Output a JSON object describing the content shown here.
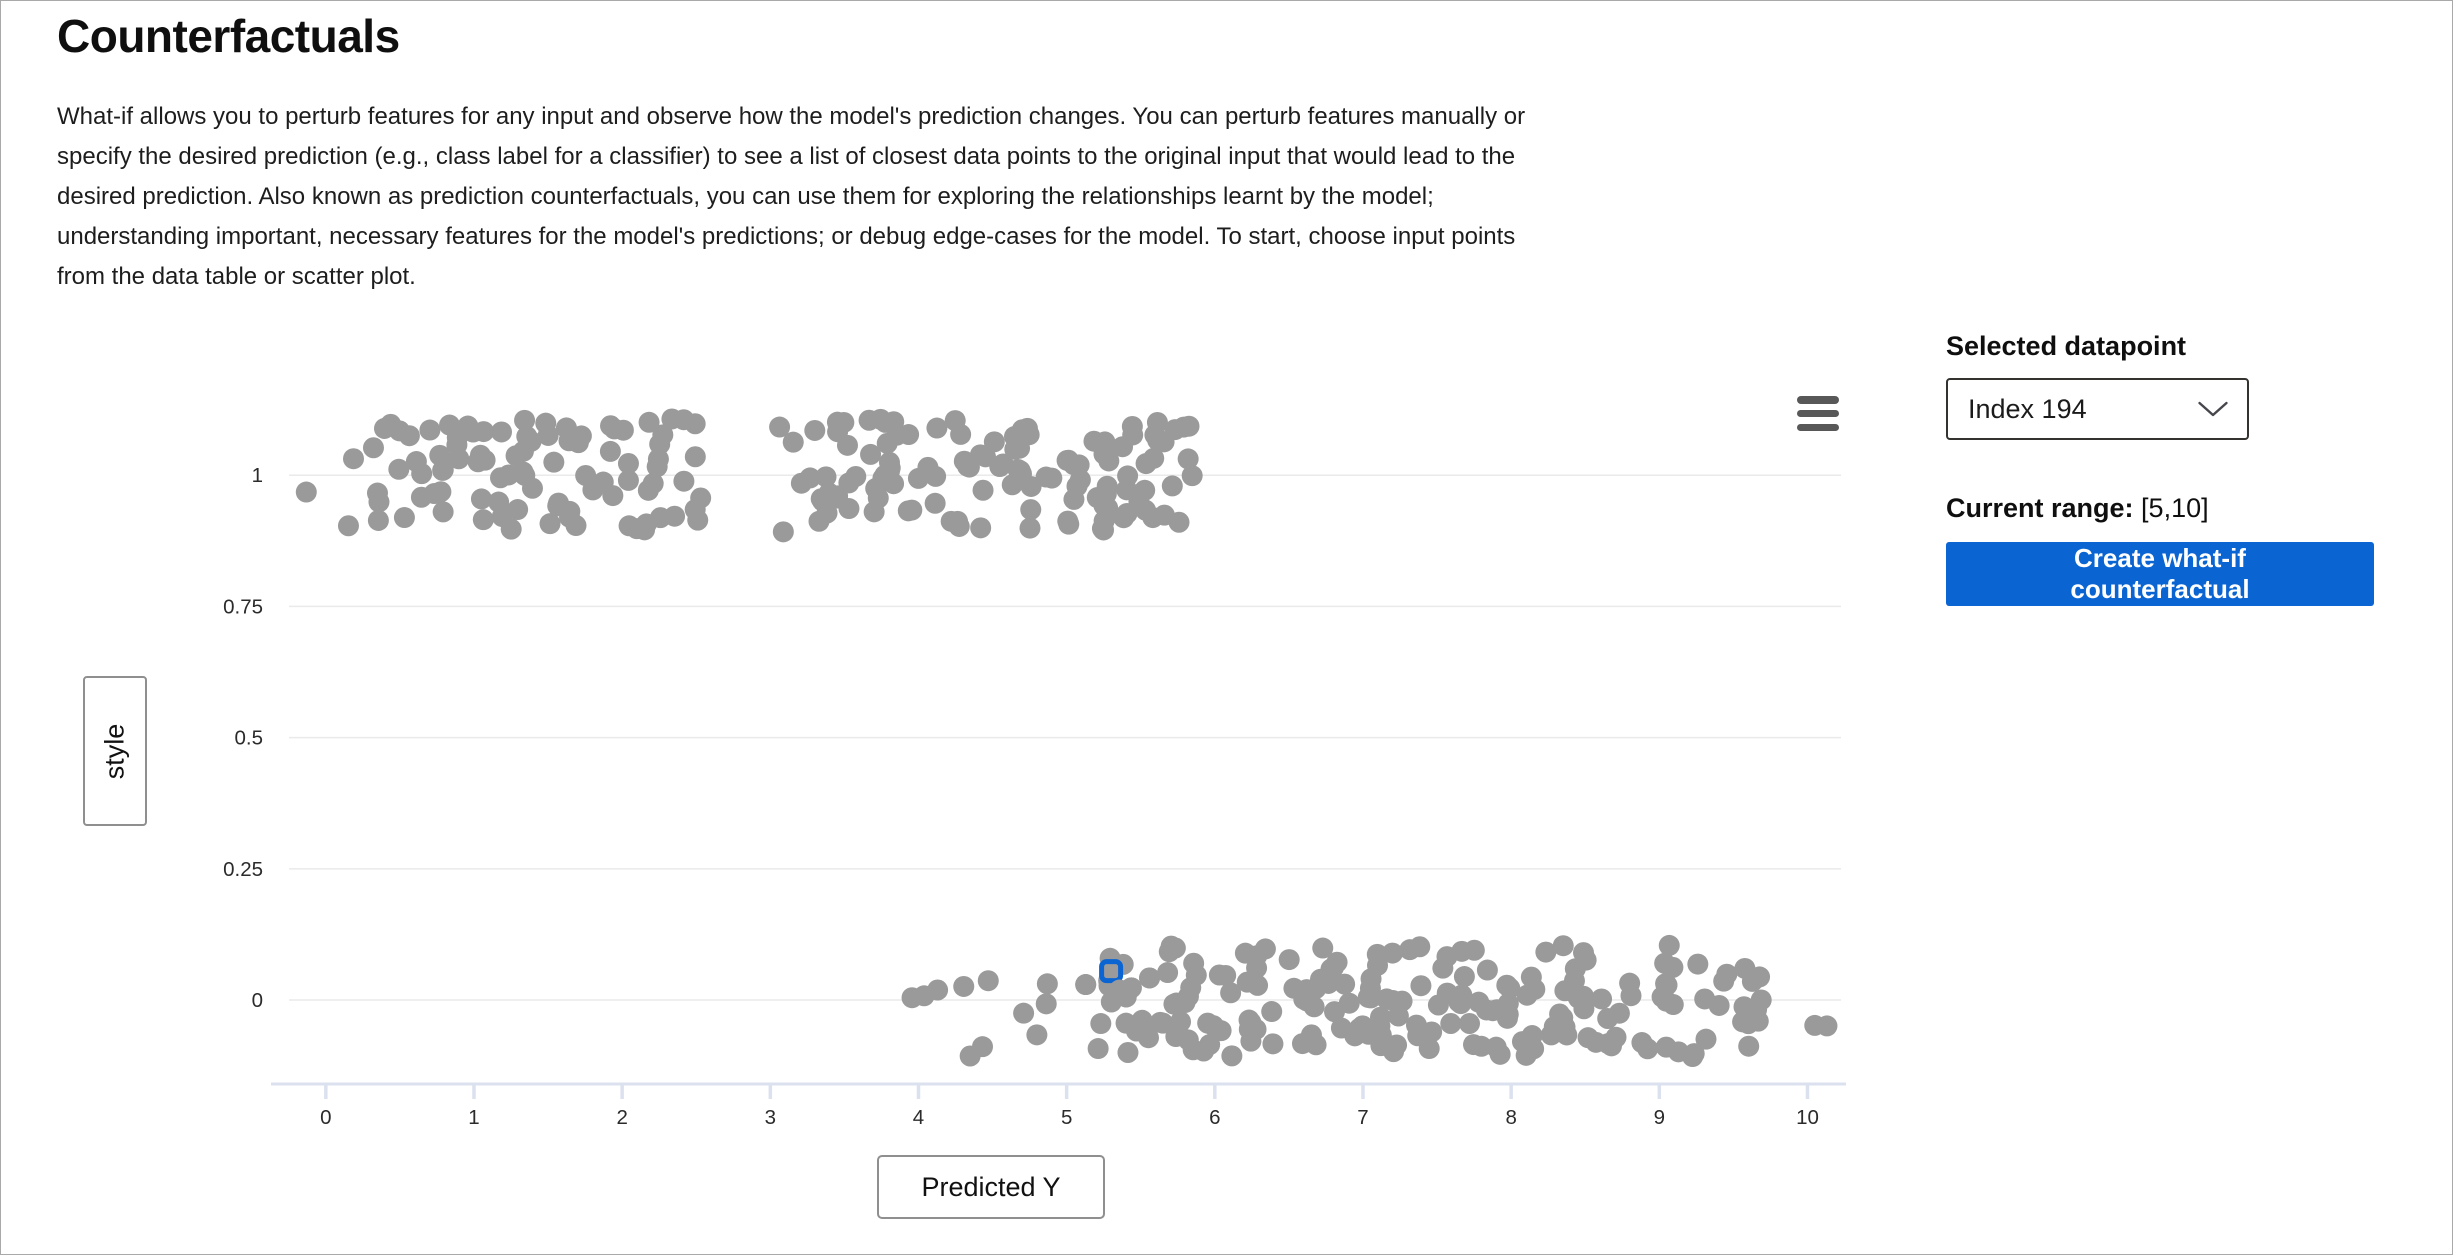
{
  "header": {
    "title": "Counterfactuals",
    "description": "What-if allows you to perturb features for any input and observe how the model's prediction changes. You can perturb features manually or specify the desired prediction (e.g., class label for a classifier) to see a list of closest data points to the original input that would lead to the desired prediction. Also known as prediction counterfactuals, you can use them for exploring the relationships learnt by the model; understanding important, necessary features for the model's predictions; or debug edge-cases for the model. To start, choose input points from the data table or scatter plot."
  },
  "panel": {
    "selected_datapoint_label": "Selected datapoint",
    "dropdown_value": "Index 194",
    "current_range_label": "Current range:",
    "current_range_value": "[5,10]",
    "create_button_label": "Create what-if counterfactual",
    "accent_color": "#0a64d2"
  },
  "icons": {
    "chart_menu": "hamburger-icon",
    "dropdown": "chevron-down-icon"
  },
  "chart_data": {
    "type": "scatter",
    "title": "",
    "xlabel": "Predicted Y",
    "ylabel": "style",
    "x_ticks": [
      0,
      1,
      2,
      3,
      4,
      5,
      6,
      7,
      8,
      9,
      10
    ],
    "y_ticks": [
      0,
      0.25,
      0.5,
      0.75,
      1
    ],
    "y_tick_labels": [
      "0",
      "0.25",
      "0.5",
      "0.75",
      "1"
    ],
    "x_range": [
      -0.37,
      10.26
    ],
    "y_range": [
      -0.16,
      1.17
    ],
    "grid": true,
    "legend": "none",
    "point_color": "#9a9a9a",
    "grid_color": "#eaeaea",
    "axis_color": "#dbe1ef",
    "selected_point": {
      "label": "Index 194",
      "x": 5.3,
      "y": 0.055,
      "marker_color": "#0a64d2"
    },
    "clusters": [
      {
        "style_value": 1,
        "y_jitter": 0.108,
        "segments": [
          {
            "x_min": -0.18,
            "x_max": -0.12,
            "count": 1
          },
          {
            "x_min": 0.08,
            "x_max": 2.62,
            "count": 93
          },
          {
            "x_min": 2.62,
            "x_max": 3.32,
            "count": 5
          },
          {
            "x_min": 3.3,
            "x_max": 5.85,
            "count": 118
          }
        ]
      },
      {
        "style_value": 0,
        "y_jitter": 0.108,
        "segments": [
          {
            "x_min": 3.95,
            "x_max": 5.25,
            "count": 14
          },
          {
            "x_min": 5.25,
            "x_max": 9.7,
            "count": 196
          },
          {
            "x_min": 9.95,
            "x_max": 10.18,
            "count": 2
          }
        ]
      }
    ]
  }
}
